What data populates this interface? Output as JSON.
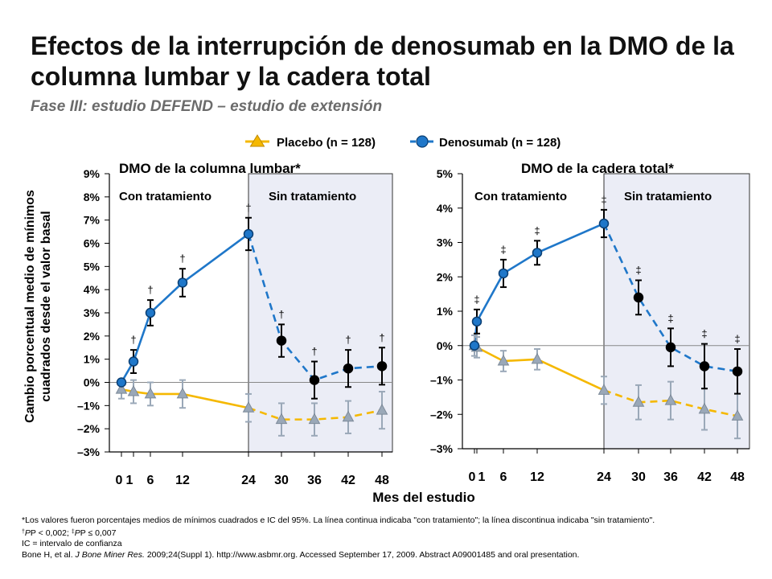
{
  "slide": {
    "title": "Efectos de la interrupción de denosumab en la DMO de la columna lumbar y la cadera total",
    "subtitle": "Fase III: estudio DEFEND – estudio de extensión"
  },
  "colors": {
    "placebo_line": "#f5b800",
    "placebo_marker": "#9aa8b8",
    "denosumab_line": "#1f77c9",
    "denosumab_marker_on": "#1f77c9",
    "denosumab_marker_off": "#000000",
    "off_treatment_shade": "#ebedf6"
  },
  "chart_data": [
    {
      "type": "line",
      "title": "DMO de la columna lumbar*",
      "phase_labels": [
        "Con tratamiento",
        "Sin tratamiento"
      ],
      "off_treatment_from_month": 24,
      "xlabel": "Mes del estudio",
      "ylabel": "Cambio porcentual medio de mínimos cuadrados desde el valor basal",
      "x_ticks": [
        0,
        1,
        6,
        12,
        24,
        30,
        36,
        42,
        48
      ],
      "x_tick_labels": [
        "0",
        "1",
        "6",
        "12",
        "24",
        "30",
        "36",
        "42",
        "48"
      ],
      "ylim": [
        -3,
        9
      ],
      "y_ticks": [
        -3,
        -2,
        -1,
        0,
        1,
        2,
        3,
        4,
        5,
        6,
        7,
        8,
        9
      ],
      "y_tick_labels": [
        "–3%",
        "–2%",
        "–1%",
        "0%",
        "1%",
        "2%",
        "3%",
        "4%",
        "5%",
        "6%",
        "7%",
        "8%",
        "9%"
      ],
      "series": [
        {
          "name": "Placebo (n = 128)",
          "marker": "triangle",
          "x": [
            0,
            1,
            6,
            12,
            24,
            30,
            36,
            42,
            48
          ],
          "y": [
            -0.3,
            -0.4,
            -0.5,
            -0.5,
            -1.1,
            -1.6,
            -1.6,
            -1.5,
            -1.2
          ],
          "ci": [
            0.4,
            0.5,
            0.5,
            0.6,
            0.6,
            0.7,
            0.7,
            0.7,
            0.8
          ]
        },
        {
          "name": "Denosumab (n = 128)",
          "marker": "circle",
          "x": [
            0,
            1,
            6,
            12,
            24,
            30,
            36,
            42,
            48
          ],
          "y": [
            0.0,
            0.9,
            3.0,
            4.3,
            6.4,
            1.8,
            0.1,
            0.6,
            0.7
          ],
          "ci": [
            0.0,
            0.5,
            0.55,
            0.6,
            0.7,
            0.7,
            0.8,
            0.8,
            0.8
          ],
          "significance": [
            "",
            "†",
            "†",
            "†",
            "†",
            "†",
            "†",
            "†",
            "†"
          ]
        }
      ]
    },
    {
      "type": "line",
      "title": "DMO de la cadera total*",
      "phase_labels": [
        "Con tratamiento",
        "Sin tratamiento"
      ],
      "off_treatment_from_month": 24,
      "xlabel": "Mes del estudio",
      "x_ticks": [
        0,
        1,
        6,
        12,
        24,
        30,
        36,
        42,
        48
      ],
      "x_tick_labels": [
        "0",
        "1",
        "6",
        "12",
        "24",
        "30",
        "36",
        "42",
        "48"
      ],
      "ylim": [
        -3,
        5
      ],
      "y_ticks": [
        -3,
        -2,
        -1,
        0,
        1,
        2,
        3,
        4,
        5
      ],
      "y_tick_labels": [
        "–3%",
        "–2%",
        "–1%",
        "0%",
        "1%",
        "2%",
        "3%",
        "4%",
        "5%"
      ],
      "series": [
        {
          "name": "Placebo (n = 128)",
          "marker": "triangle",
          "x": [
            0,
            1,
            6,
            12,
            24,
            30,
            36,
            42,
            48
          ],
          "y": [
            0.0,
            -0.05,
            -0.45,
            -0.4,
            -1.3,
            -1.65,
            -1.6,
            -1.85,
            -2.05
          ],
          "ci": [
            0.3,
            0.3,
            0.3,
            0.3,
            0.4,
            0.5,
            0.55,
            0.6,
            0.65
          ]
        },
        {
          "name": "Denosumab (n = 128)",
          "marker": "circle",
          "x": [
            0,
            1,
            6,
            12,
            24,
            30,
            36,
            42,
            48
          ],
          "y": [
            0.0,
            0.7,
            2.1,
            2.7,
            3.55,
            1.4,
            -0.05,
            -0.6,
            -0.75
          ],
          "ci": [
            0.0,
            0.35,
            0.4,
            0.35,
            0.4,
            0.5,
            0.55,
            0.65,
            0.65
          ],
          "significance": [
            "",
            "‡",
            "‡",
            "‡",
            "‡",
            "‡",
            "‡",
            "‡",
            "‡"
          ]
        }
      ]
    }
  ],
  "legend": {
    "placebo": "Placebo (n = 128)",
    "denosumab": "Denosumab (n = 128)"
  },
  "footnotes": {
    "line1": "*Los valores fueron porcentajes medios de mínimos cuadrados e IC del 95%. La línea continua indicaba \"con tratamiento\"; la línea discontinua indicaba \"sin tratamiento\".",
    "dagger": "†",
    "dagger_text": "P < 0,002; ",
    "ddagger": "‡",
    "ddagger_text": "P ≤ 0,007",
    "line3": "IC = intervalo de confianza",
    "ref_authors": "Bone H, et al. ",
    "ref_journal": "J Bone Miner Res.",
    "ref_rest": " 2009;24(Suppl 1). http://www.asbmr.org.  Accessed September 17, 2009. Abstract A09001485 and oral presentation."
  }
}
